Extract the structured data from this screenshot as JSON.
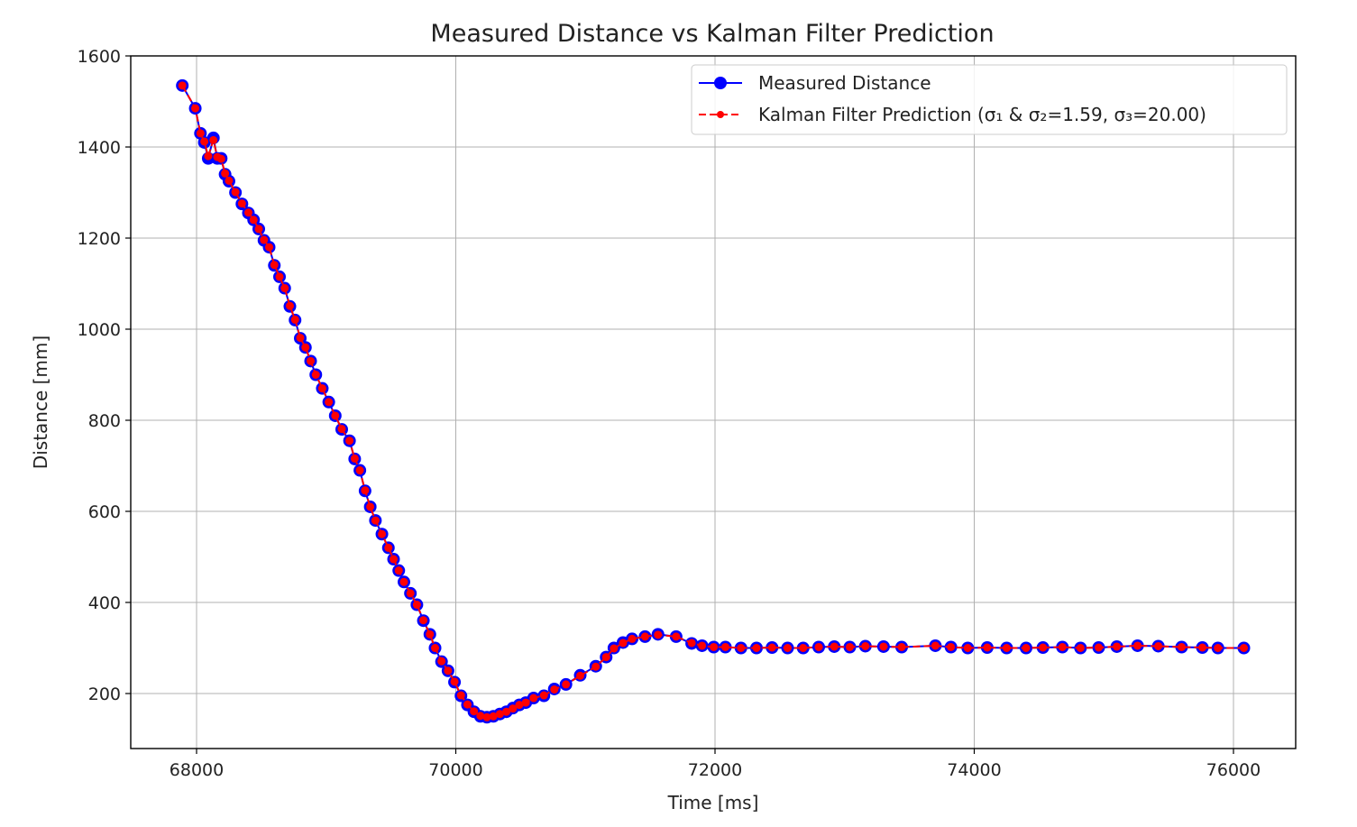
{
  "chart_data": {
    "type": "line",
    "title": "Measured Distance vs Kalman Filter Prediction",
    "xlabel": "Time [ms]",
    "ylabel": "Distance [mm]",
    "xlim": [
      67500,
      75500
    ],
    "ylim": [
      75,
      1605
    ],
    "xticks": [
      68000,
      70000,
      72000,
      74000,
      76000
    ],
    "yticks": [
      200,
      400,
      600,
      800,
      1000,
      1200,
      1400,
      1600
    ],
    "grid": true,
    "legend_position": "top-right",
    "series": [
      {
        "name": "Measured Distance",
        "color": "#0000ff",
        "style": "solid",
        "marker": "circle",
        "x": [
          67890,
          67990,
          68030,
          68060,
          68090,
          68130,
          68160,
          68190,
          68220,
          68250,
          68300,
          68350,
          68400,
          68440,
          68480,
          68520,
          68560,
          68600,
          68640,
          68680,
          68720,
          68760,
          68800,
          68840,
          68880,
          68920,
          68970,
          69020,
          69070,
          69120,
          69180,
          69220,
          69260,
          69300,
          69340,
          69380,
          69430,
          69480,
          69520,
          69560,
          69600,
          69650,
          69700,
          69750,
          69800,
          69840,
          69890,
          69940,
          69990,
          70040,
          70090,
          70140,
          70190,
          70240,
          70290,
          70340,
          70390,
          70440,
          70490,
          70540,
          70600,
          70680,
          70760,
          70850,
          70960,
          71080,
          71160,
          71220,
          71290,
          71360,
          71460,
          71560,
          71700,
          71820,
          71900,
          71990,
          72080,
          72200,
          72320,
          72440,
          72560,
          72680,
          72800,
          72920,
          73040,
          73160,
          73300,
          73440,
          73700,
          73820,
          73950,
          74100,
          74250,
          74400,
          74530,
          74680,
          74820,
          74960,
          75100,
          75260,
          75420,
          75600,
          75760,
          75880,
          76080
        ],
        "y": [
          1535,
          1485,
          1430,
          1410,
          1375,
          1420,
          1375,
          1375,
          1340,
          1325,
          1300,
          1275,
          1255,
          1240,
          1220,
          1195,
          1180,
          1140,
          1115,
          1090,
          1050,
          1020,
          980,
          960,
          930,
          900,
          870,
          840,
          810,
          780,
          755,
          715,
          690,
          645,
          610,
          580,
          550,
          520,
          495,
          470,
          445,
          420,
          395,
          360,
          330,
          300,
          270,
          250,
          225,
          195,
          175,
          160,
          150,
          148,
          150,
          155,
          160,
          168,
          175,
          180,
          190,
          195,
          210,
          220,
          240,
          260,
          280,
          300,
          312,
          320,
          325,
          330,
          325,
          310,
          305,
          302,
          302,
          300,
          300,
          301,
          300,
          300,
          302,
          303,
          302,
          304,
          303,
          302,
          305,
          302,
          300,
          301,
          300,
          300,
          301,
          302,
          300,
          301,
          303,
          305,
          304,
          302,
          301,
          300,
          300
        ]
      },
      {
        "name": "Kalman Filter Prediction (σ₁ & σ₂=1.59, σ₃=20.00)",
        "color": "#ff0000",
        "style": "dashed",
        "marker": "dot",
        "x": [
          67890,
          67990,
          68030,
          68060,
          68090,
          68130,
          68160,
          68190,
          68220,
          68250,
          68300,
          68350,
          68400,
          68440,
          68480,
          68520,
          68560,
          68600,
          68640,
          68680,
          68720,
          68760,
          68800,
          68840,
          68880,
          68920,
          68970,
          69020,
          69070,
          69120,
          69180,
          69220,
          69260,
          69300,
          69340,
          69380,
          69430,
          69480,
          69520,
          69560,
          69600,
          69650,
          69700,
          69750,
          69800,
          69840,
          69890,
          69940,
          69990,
          70040,
          70090,
          70140,
          70190,
          70240,
          70290,
          70340,
          70390,
          70440,
          70490,
          70540,
          70600,
          70680,
          70760,
          70850,
          70960,
          71080,
          71160,
          71220,
          71290,
          71360,
          71460,
          71560,
          71700,
          71820,
          71900,
          71990,
          72080,
          72200,
          72320,
          72440,
          72560,
          72680,
          72800,
          72920,
          73040,
          73160,
          73300,
          73440,
          73700,
          73820,
          73950,
          74100,
          74250,
          74400,
          74530,
          74680,
          74820,
          74960,
          75100,
          75260,
          75420,
          75600,
          75760,
          75880,
          76080
        ],
        "y": [
          1535,
          1485,
          1430,
          1412,
          1380,
          1415,
          1378,
          1374,
          1342,
          1326,
          1301,
          1276,
          1256,
          1240,
          1220,
          1196,
          1180,
          1141,
          1115,
          1090,
          1051,
          1021,
          981,
          960,
          930,
          900,
          870,
          840,
          810,
          781,
          755,
          716,
          690,
          646,
          610,
          580,
          550,
          520,
          495,
          470,
          445,
          420,
          395,
          361,
          330,
          300,
          271,
          250,
          226,
          196,
          176,
          161,
          151,
          148,
          150,
          155,
          160,
          167,
          175,
          180,
          190,
          196,
          209,
          220,
          239,
          259,
          280,
          299,
          311,
          320,
          325,
          329,
          325,
          311,
          305,
          302,
          302,
          300,
          300,
          301,
          300,
          300,
          302,
          303,
          302,
          304,
          303,
          302,
          305,
          302,
          300,
          301,
          300,
          300,
          301,
          302,
          300,
          301,
          303,
          305,
          304,
          302,
          301,
          300,
          300
        ]
      }
    ]
  }
}
